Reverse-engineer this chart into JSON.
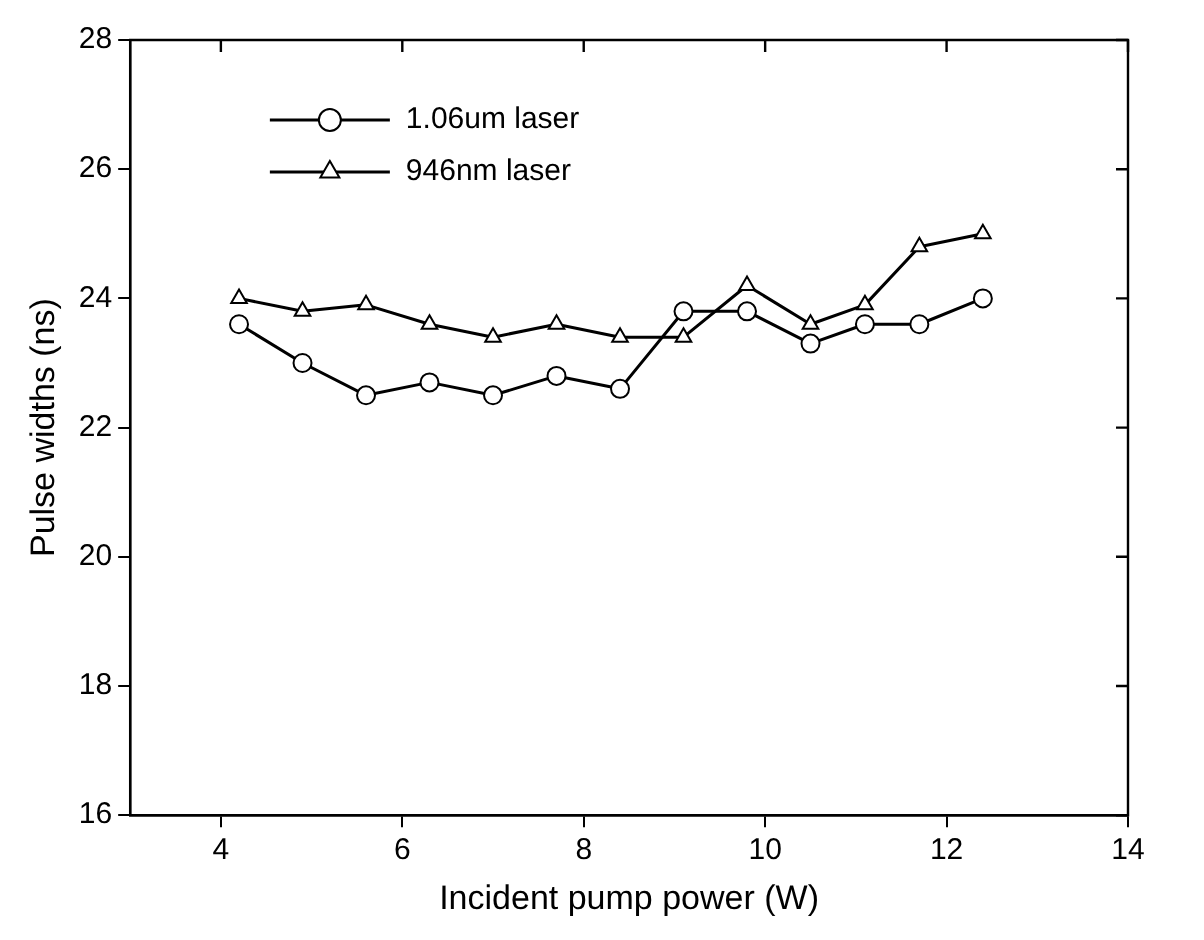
{
  "chart_data": {
    "type": "line",
    "xlabel": "Incident pump power (W)",
    "ylabel": "Pulse widths (ns)",
    "x": [
      4.2,
      4.9,
      5.6,
      6.3,
      7.0,
      7.7,
      8.4,
      9.1,
      9.8,
      10.5,
      11.1,
      11.7,
      12.4
    ],
    "series": [
      {
        "name": "1.06um laser",
        "color": "#000000",
        "marker": "circle",
        "values": [
          23.6,
          23.0,
          22.5,
          22.7,
          22.5,
          22.8,
          22.6,
          23.8,
          23.8,
          23.3,
          23.6,
          23.6,
          24.0
        ]
      },
      {
        "name": "946nm laser",
        "color": "#000000",
        "marker": "triangle",
        "values": [
          24.0,
          23.8,
          23.9,
          23.6,
          23.4,
          23.6,
          23.4,
          23.4,
          24.2,
          23.6,
          23.9,
          24.8,
          25.0
        ]
      }
    ],
    "xlim": [
      3,
      14
    ],
    "xticks": [
      4,
      6,
      8,
      10,
      12,
      14
    ],
    "ylim": [
      16,
      28
    ],
    "yticks": [
      16,
      18,
      20,
      22,
      24,
      26,
      28
    ],
    "grid": false,
    "legend": "top left",
    "line_style": "solid"
  }
}
